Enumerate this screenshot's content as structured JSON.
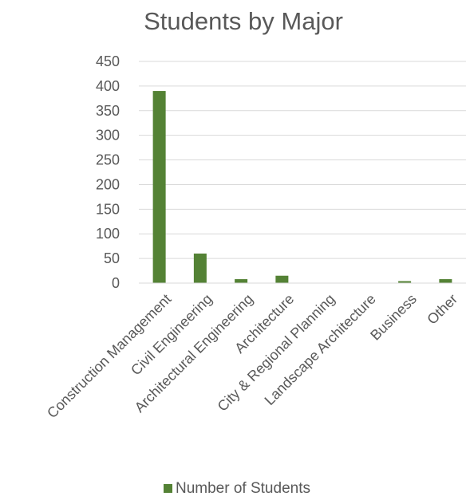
{
  "chart_data": {
    "type": "bar",
    "title": "Students by Major",
    "xlabel": "",
    "ylabel": "",
    "categories": [
      "Construction Management",
      "Civil Engineering",
      "Architectural Engineering",
      "Architecture",
      "City & Regional Planning",
      "Landscape Architecture",
      "Business",
      "Other"
    ],
    "series": [
      {
        "name": "Number of Students",
        "values": [
          390,
          60,
          8,
          15,
          0,
          0,
          4,
          8
        ],
        "color": "#548235"
      }
    ],
    "ylim": [
      0,
      450
    ],
    "yticks": [
      0,
      50,
      100,
      150,
      200,
      250,
      300,
      350,
      400,
      450
    ],
    "grid": true,
    "legend_position": "bottom"
  }
}
